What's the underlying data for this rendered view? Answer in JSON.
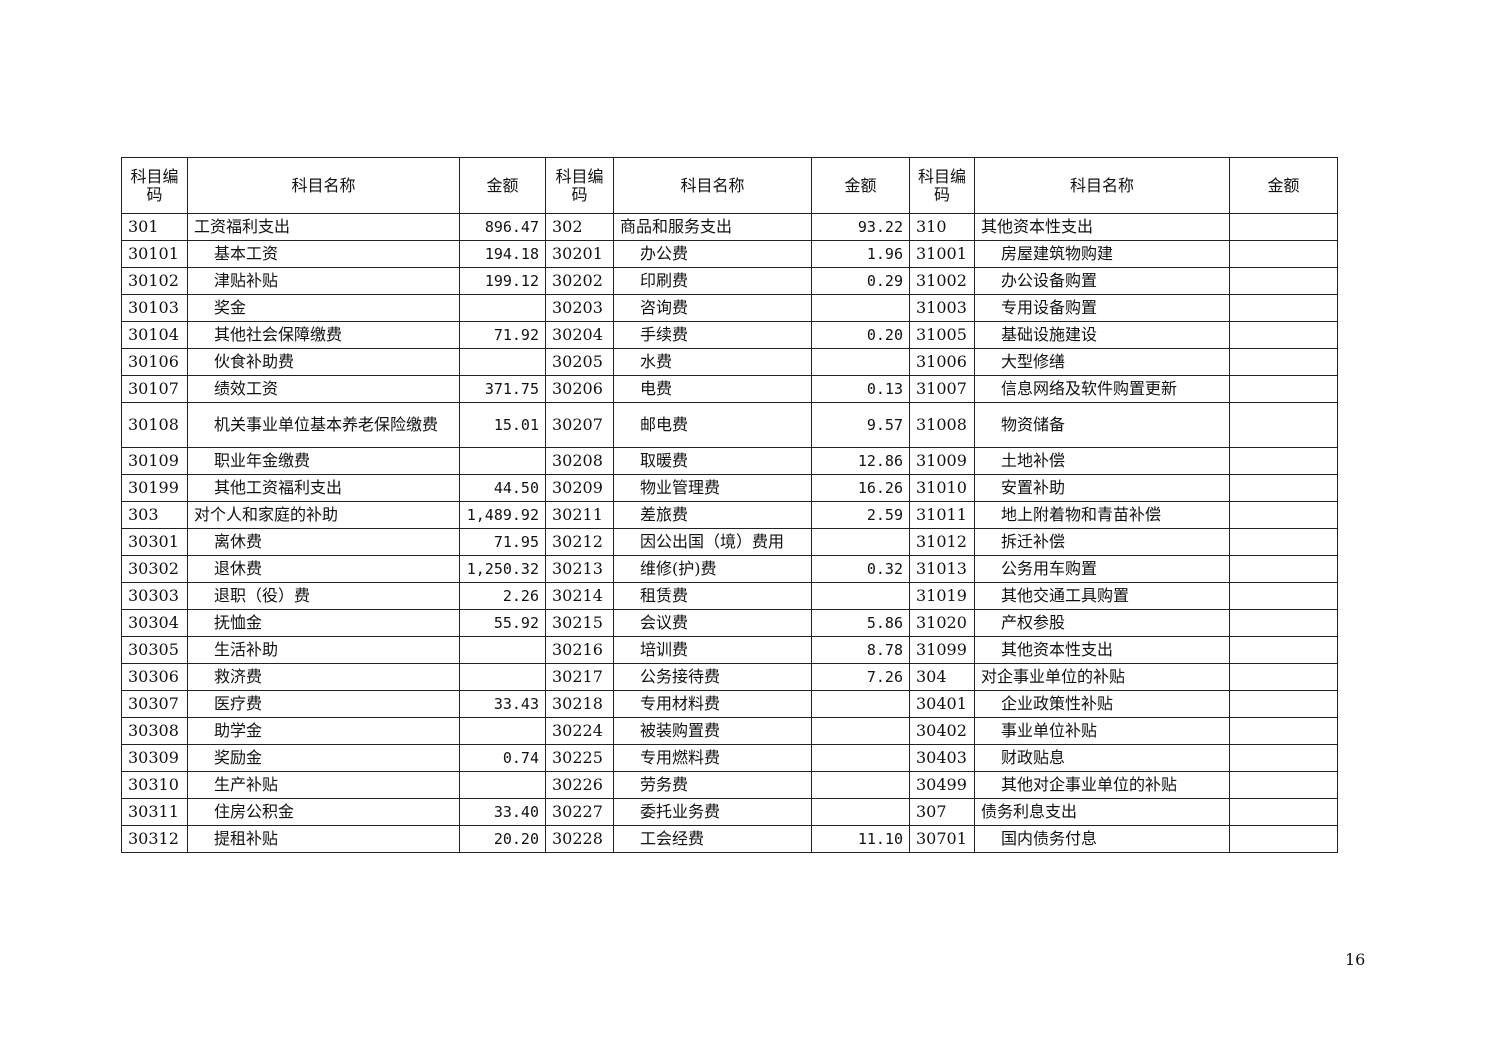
{
  "headers": {
    "code": "科目编码",
    "name": "科目名称",
    "amount": "金额"
  },
  "rows": [
    [
      [
        "301",
        "工资福利支出",
        "896.47",
        0
      ],
      [
        "302",
        "商品和服务支出",
        "93.22",
        0
      ],
      [
        "310",
        "其他资本性支出",
        "",
        0
      ]
    ],
    [
      [
        "30101",
        "基本工资",
        "194.18",
        1
      ],
      [
        "30201",
        "办公费",
        "1.96",
        1
      ],
      [
        "31001",
        "房屋建筑物购建",
        "",
        1
      ]
    ],
    [
      [
        "30102",
        "津贴补贴",
        "199.12",
        1
      ],
      [
        "30202",
        "印刷费",
        "0.29",
        1
      ],
      [
        "31002",
        "办公设备购置",
        "",
        1
      ]
    ],
    [
      [
        "30103",
        "奖金",
        "",
        1
      ],
      [
        "30203",
        "咨询费",
        "",
        1
      ],
      [
        "31003",
        "专用设备购置",
        "",
        1
      ]
    ],
    [
      [
        "30104",
        "其他社会保障缴费",
        "71.92",
        1
      ],
      [
        "30204",
        "手续费",
        "0.20",
        1
      ],
      [
        "31005",
        "基础设施建设",
        "",
        1
      ]
    ],
    [
      [
        "30106",
        "伙食补助费",
        "",
        1
      ],
      [
        "30205",
        "水费",
        "",
        1
      ],
      [
        "31006",
        "大型修缮",
        "",
        1
      ]
    ],
    [
      [
        "30107",
        "绩效工资",
        "371.75",
        1
      ],
      [
        "30206",
        "电费",
        "0.13",
        1
      ],
      [
        "31007",
        "信息网络及软件购置更新",
        "",
        1
      ]
    ],
    [
      [
        "30108",
        "机关事业单位基本养老保险缴费",
        "15.01",
        1
      ],
      [
        "30207",
        "邮电费",
        "9.57",
        1
      ],
      [
        "31008",
        "物资储备",
        "",
        1
      ]
    ],
    [
      [
        "30109",
        "职业年金缴费",
        "",
        1
      ],
      [
        "30208",
        "取暖费",
        "12.86",
        1
      ],
      [
        "31009",
        "土地补偿",
        "",
        1
      ]
    ],
    [
      [
        "30199",
        "其他工资福利支出",
        "44.50",
        1
      ],
      [
        "30209",
        "物业管理费",
        "16.26",
        1
      ],
      [
        "31010",
        "安置补助",
        "",
        1
      ]
    ],
    [
      [
        "303",
        "对个人和家庭的补助",
        "1,489.92",
        0
      ],
      [
        "30211",
        "差旅费",
        "2.59",
        1
      ],
      [
        "31011",
        "地上附着物和青苗补偿",
        "",
        1
      ]
    ],
    [
      [
        "30301",
        "离休费",
        "71.95",
        1
      ],
      [
        "30212",
        "因公出国（境）费用",
        "",
        1
      ],
      [
        "31012",
        "拆迁补偿",
        "",
        1
      ]
    ],
    [
      [
        "30302",
        "退休费",
        "1,250.32",
        1
      ],
      [
        "30213",
        "维修(护)费",
        "0.32",
        1
      ],
      [
        "31013",
        "公务用车购置",
        "",
        1
      ]
    ],
    [
      [
        "30303",
        "退职（役）费",
        "2.26",
        1
      ],
      [
        "30214",
        "租赁费",
        "",
        1
      ],
      [
        "31019",
        "其他交通工具购置",
        "",
        1
      ]
    ],
    [
      [
        "30304",
        "抚恤金",
        "55.92",
        1
      ],
      [
        "30215",
        "会议费",
        "5.86",
        1
      ],
      [
        "31020",
        "产权参股",
        "",
        1
      ]
    ],
    [
      [
        "30305",
        "生活补助",
        "",
        1
      ],
      [
        "30216",
        "培训费",
        "8.78",
        1
      ],
      [
        "31099",
        "其他资本性支出",
        "",
        1
      ]
    ],
    [
      [
        "30306",
        "救济费",
        "",
        1
      ],
      [
        "30217",
        "公务接待费",
        "7.26",
        1
      ],
      [
        "304",
        "对企事业单位的补贴",
        "",
        0
      ]
    ],
    [
      [
        "30307",
        "医疗费",
        "33.43",
        1
      ],
      [
        "30218",
        "专用材料费",
        "",
        1
      ],
      [
        "30401",
        "企业政策性补贴",
        "",
        1
      ]
    ],
    [
      [
        "30308",
        "助学金",
        "",
        1
      ],
      [
        "30224",
        "被装购置费",
        "",
        1
      ],
      [
        "30402",
        "事业单位补贴",
        "",
        1
      ]
    ],
    [
      [
        "30309",
        "奖励金",
        "0.74",
        1
      ],
      [
        "30225",
        "专用燃料费",
        "",
        1
      ],
      [
        "30403",
        "财政贴息",
        "",
        1
      ]
    ],
    [
      [
        "30310",
        "生产补贴",
        "",
        1
      ],
      [
        "30226",
        "劳务费",
        "",
        1
      ],
      [
        "30499",
        "其他对企事业单位的补贴",
        "",
        1
      ]
    ],
    [
      [
        "30311",
        "住房公积金",
        "33.40",
        1
      ],
      [
        "30227",
        "委托业务费",
        "",
        1
      ],
      [
        "307",
        "债务利息支出",
        "",
        0
      ]
    ],
    [
      [
        "30312",
        "提租补贴",
        "20.20",
        1
      ],
      [
        "30228",
        "工会经费",
        "11.10",
        1
      ],
      [
        "30701",
        "国内债务付息",
        "",
        1
      ]
    ]
  ],
  "page_number": "16"
}
